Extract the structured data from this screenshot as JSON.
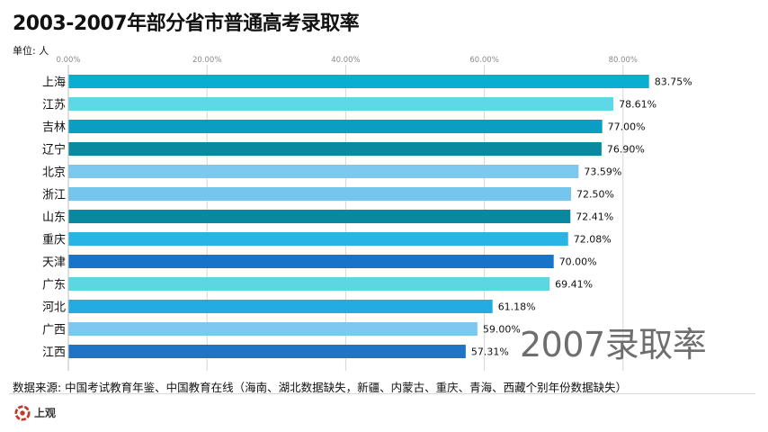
{
  "header": {
    "title": "2003-2007年部分省市普通高考录取率",
    "unit": "单位: 人"
  },
  "chart_data": {
    "type": "bar",
    "orientation": "horizontal",
    "title": "2003-2007年部分省市普通高考录取率",
    "xlim": [
      0,
      0.85
    ],
    "x_ticks": [
      "0.00%",
      "20.00%",
      "40.00%",
      "60.00%",
      "80.00%"
    ],
    "categories": [
      "上海",
      "江苏",
      "吉林",
      "辽宁",
      "北京",
      "浙江",
      "山东",
      "重庆",
      "天津",
      "广东",
      "河北",
      "广西",
      "江西"
    ],
    "values": [
      83.75,
      78.61,
      77.0,
      76.9,
      73.59,
      72.5,
      72.41,
      72.08,
      70.0,
      69.41,
      61.18,
      59.0,
      57.31
    ],
    "value_labels": [
      "83.75%",
      "78.61%",
      "77.00%",
      "76.90%",
      "73.59%",
      "72.50%",
      "72.41%",
      "72.08%",
      "70.00%",
      "69.41%",
      "61.18%",
      "59.00%",
      "57.31%"
    ],
    "colors": [
      "#0aaed2",
      "#5ed8e6",
      "#0a9fc2",
      "#0a8aa0",
      "#7ec8f0",
      "#74c6ec",
      "#0a88a0",
      "#28b4e4",
      "#1874c8",
      "#5cd6e0",
      "#22ace2",
      "#7cc8f0",
      "#1f74c6"
    ],
    "annotation": "2007录取率",
    "grid": true
  },
  "footer": {
    "source": "数据来源: 中国考试教育年鉴、中国教育在线（海南、湖北数据缺失，新疆、内蒙古、重庆、青海、西藏个别年份数据缺失）",
    "logo": "上观"
  }
}
